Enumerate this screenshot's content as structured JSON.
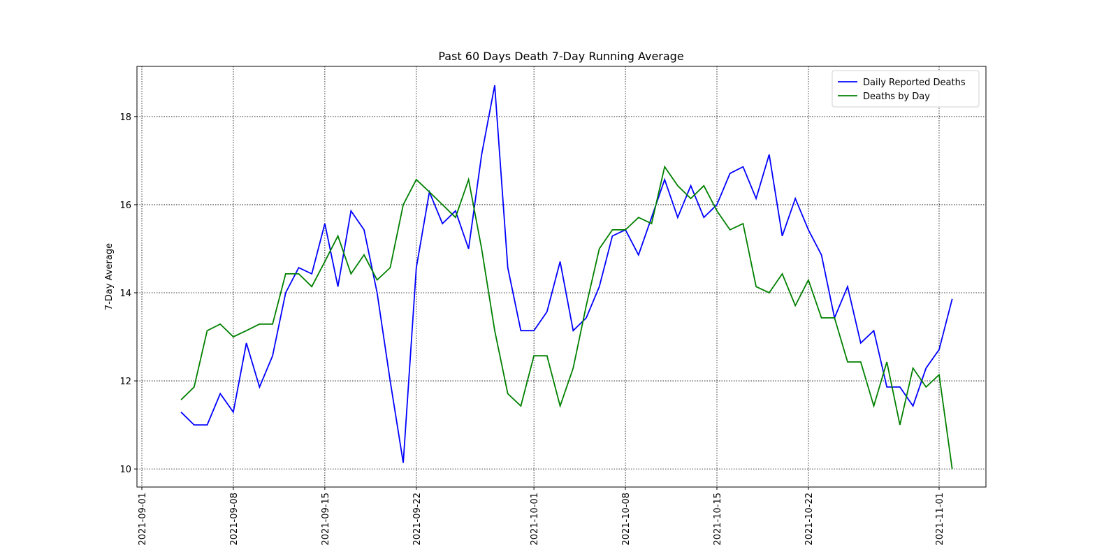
{
  "chart_data": {
    "type": "line",
    "title": "Past 60 Days Death 7-Day Running Average",
    "y_label": "7-Day Average",
    "x": [
      "2021-09-04",
      "2021-09-05",
      "2021-09-06",
      "2021-09-07",
      "2021-09-08",
      "2021-09-09",
      "2021-09-10",
      "2021-09-11",
      "2021-09-12",
      "2021-09-13",
      "2021-09-14",
      "2021-09-15",
      "2021-09-16",
      "2021-09-17",
      "2021-09-18",
      "2021-09-19",
      "2021-09-20",
      "2021-09-21",
      "2021-09-22",
      "2021-09-23",
      "2021-09-24",
      "2021-09-25",
      "2021-09-26",
      "2021-09-27",
      "2021-09-28",
      "2021-09-29",
      "2021-09-30",
      "2021-10-01",
      "2021-10-02",
      "2021-10-03",
      "2021-10-04",
      "2021-10-05",
      "2021-10-06",
      "2021-10-07",
      "2021-10-08",
      "2021-10-09",
      "2021-10-10",
      "2021-10-11",
      "2021-10-12",
      "2021-10-13",
      "2021-10-14",
      "2021-10-15",
      "2021-10-16",
      "2021-10-17",
      "2021-10-18",
      "2021-10-19",
      "2021-10-20",
      "2021-10-21",
      "2021-10-22",
      "2021-10-23",
      "2021-10-24",
      "2021-10-25",
      "2021-10-26",
      "2021-10-27",
      "2021-10-28",
      "2021-10-29",
      "2021-10-30",
      "2021-10-31",
      "2021-11-01",
      "2021-11-02"
    ],
    "series": [
      {
        "name": "Daily Reported Deaths",
        "color": "#0000ff",
        "values": [
          11.29,
          11.0,
          11.0,
          11.71,
          11.29,
          12.86,
          11.86,
          12.57,
          14.0,
          14.57,
          14.43,
          15.57,
          14.14,
          15.86,
          15.43,
          14.0,
          12.0,
          10.14,
          14.57,
          16.29,
          15.57,
          15.86,
          15.0,
          17.14,
          18.71,
          14.57,
          13.14,
          13.14,
          13.57,
          14.71,
          13.14,
          13.43,
          14.14,
          15.29,
          15.43,
          14.86,
          15.71,
          16.57,
          15.71,
          16.43,
          15.71,
          16.0,
          16.71,
          16.86,
          16.14,
          17.14,
          15.29,
          16.14,
          15.43,
          14.86,
          13.43,
          14.14,
          12.86,
          13.14,
          11.86,
          11.86,
          11.43,
          12.29,
          12.71,
          13.86
        ]
      },
      {
        "name": "Deaths by Day",
        "color": "#008000",
        "values": [
          11.57,
          11.86,
          13.14,
          13.29,
          13.0,
          13.14,
          13.29,
          13.29,
          14.43,
          14.43,
          14.14,
          14.71,
          15.29,
          14.43,
          14.86,
          14.29,
          14.57,
          16.0,
          16.57,
          16.29,
          16.0,
          15.71,
          16.57,
          15.0,
          13.14,
          11.71,
          11.43,
          12.57,
          12.57,
          11.43,
          12.29,
          13.71,
          15.0,
          15.43,
          15.43,
          15.71,
          15.57,
          16.86,
          16.43,
          16.14,
          16.43,
          15.86,
          15.43,
          15.57,
          14.14,
          14.0,
          14.43,
          13.71,
          14.29,
          13.43,
          13.43,
          12.43,
          12.43,
          11.43,
          12.43,
          11.0,
          12.29,
          11.86,
          12.14,
          10.0
        ]
      }
    ],
    "xlim": [
      "2021-08-31T15:00",
      "2021-11-04T14:00"
    ],
    "xticks": [
      "2021-09-01",
      "2021-09-08",
      "2021-09-15",
      "2021-09-22",
      "2021-10-01",
      "2021-10-08",
      "2021-10-15",
      "2021-10-22",
      "2021-11-01"
    ],
    "ylim": [
      9.59,
      19.14
    ],
    "yticks": [
      10,
      12,
      14,
      16,
      18
    ],
    "grid": true,
    "legend": "upper right"
  }
}
